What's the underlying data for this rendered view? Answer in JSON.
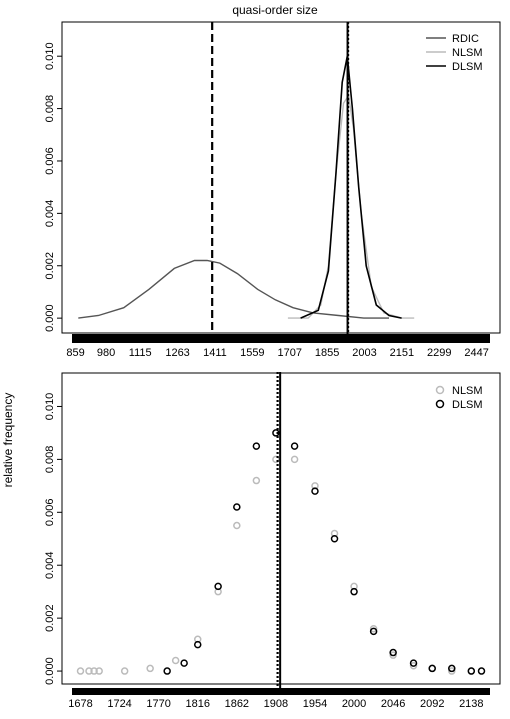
{
  "chart_data": [
    {
      "type": "line",
      "title": "quasi-order size",
      "xlabel": "",
      "ylabel": "",
      "xlim": [
        845,
        2500
      ],
      "ylim": [
        -0.0003,
        0.011
      ],
      "x_ticks": [
        "859",
        "980",
        "1115",
        "1263",
        "1411",
        "1559",
        "1707",
        "1855",
        "2003",
        "2151",
        "2299",
        "2447"
      ],
      "y_ticks": [
        "0.000",
        "0.002",
        "0.004",
        "0.006",
        "0.008",
        "0.010"
      ],
      "legend": {
        "position": "top-right"
      },
      "series": [
        {
          "name": "RDIC",
          "color": "#555555",
          "x": [
            870,
            950,
            1050,
            1150,
            1250,
            1330,
            1380,
            1430,
            1500,
            1580,
            1650,
            1720,
            1800,
            1900,
            2000,
            2100
          ],
          "y": [
            0.0,
            0.0001,
            0.0004,
            0.0011,
            0.0019,
            0.0022,
            0.0022,
            0.0021,
            0.0017,
            0.0011,
            0.0007,
            0.0004,
            0.0002,
            0.0001,
            0.0,
            0.0
          ]
        },
        {
          "name": "NLSM",
          "color": "#bbbbbb",
          "x": [
            1700,
            1780,
            1830,
            1860,
            1890,
            1920,
            1940,
            1960,
            1990,
            2030,
            2080,
            2150,
            2200
          ],
          "y": [
            0.0,
            0.0,
            0.0005,
            0.002,
            0.0055,
            0.0082,
            0.0085,
            0.0072,
            0.004,
            0.0012,
            0.0002,
            0.0,
            0.0
          ]
        },
        {
          "name": "DLSM",
          "color": "#000000",
          "x": [
            1750,
            1820,
            1860,
            1890,
            1915,
            1935,
            1955,
            1980,
            2010,
            2050,
            2100,
            2150
          ],
          "y": [
            0.0,
            0.0003,
            0.0018,
            0.0055,
            0.009,
            0.01,
            0.008,
            0.005,
            0.002,
            0.0005,
            0.0001,
            0.0
          ]
        }
      ],
      "vlines": [
        {
          "x": 1400,
          "style": "dashed"
        },
        {
          "x": 1938,
          "style": "dotted"
        },
        {
          "x": 1936,
          "style": "solid"
        }
      ]
    },
    {
      "type": "scatter",
      "title": "",
      "xlabel": "",
      "ylabel": "relative frequency",
      "xlim": [
        1668,
        2160
      ],
      "ylim": [
        -0.0003,
        0.011
      ],
      "x_ticks": [
        "1678",
        "1724",
        "1770",
        "1816",
        "1862",
        "1908",
        "1954",
        "2000",
        "2046",
        "2092",
        "2138"
      ],
      "y_ticks": [
        "0.000",
        "0.002",
        "0.004",
        "0.006",
        "0.008",
        "0.010"
      ],
      "legend": {
        "position": "top-right"
      },
      "series": [
        {
          "name": "NLSM",
          "color": "#bbbbbb",
          "marker": "open-circle",
          "x": [
            1678,
            1688,
            1694,
            1700,
            1730,
            1760,
            1790,
            1816,
            1840,
            1862,
            1885,
            1908,
            1930,
            1954,
            1977,
            2000,
            2023,
            2046,
            2070,
            2092,
            2115,
            2138
          ],
          "y": [
            0.0,
            0.0,
            0.0,
            0.0,
            0.0,
            0.0001,
            0.0004,
            0.0012,
            0.003,
            0.0055,
            0.0072,
            0.008,
            0.008,
            0.007,
            0.0052,
            0.0032,
            0.0016,
            0.0006,
            0.0002,
            0.0001,
            0.0,
            0.0
          ]
        },
        {
          "name": "DLSM",
          "color": "#000000",
          "marker": "open-circle",
          "x": [
            1780,
            1800,
            1816,
            1840,
            1862,
            1885,
            1908,
            1930,
            1954,
            1977,
            2000,
            2023,
            2046,
            2070,
            2092,
            2115,
            2138,
            2150
          ],
          "y": [
            0.0,
            0.0003,
            0.001,
            0.0032,
            0.0062,
            0.0085,
            0.009,
            0.0085,
            0.0068,
            0.005,
            0.003,
            0.0015,
            0.0007,
            0.0003,
            0.0001,
            0.0001,
            0.0,
            0.0
          ]
        }
      ],
      "vlines": [
        {
          "x": 1910,
          "style": "dotted"
        },
        {
          "x": 1913,
          "style": "solid"
        }
      ]
    }
  ]
}
